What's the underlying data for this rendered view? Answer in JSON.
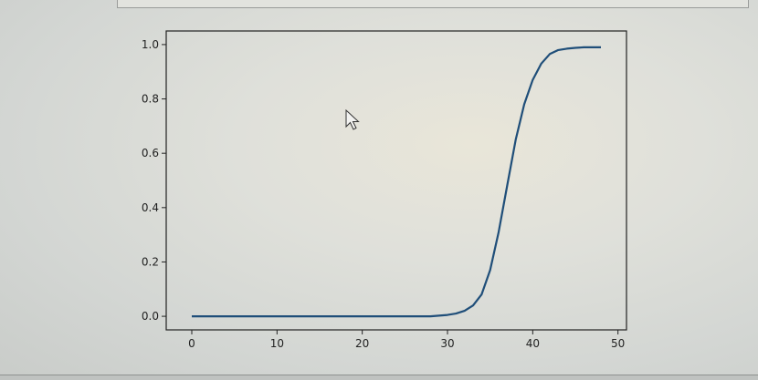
{
  "chart_data": {
    "type": "line",
    "title": "",
    "xlabel": "",
    "ylabel": "",
    "xlim": [
      -3,
      51
    ],
    "ylim": [
      -0.05,
      1.05
    ],
    "xticks": [
      0,
      10,
      20,
      30,
      40,
      50
    ],
    "yticks": [
      0.0,
      0.2,
      0.4,
      0.6,
      0.8,
      1.0
    ],
    "xtick_labels": [
      "0",
      "10",
      "20",
      "30",
      "40",
      "50"
    ],
    "ytick_labels": [
      "0.0",
      "0.2",
      "0.4",
      "0.6",
      "0.8",
      "1.0"
    ],
    "grid": false,
    "series": [
      {
        "color": "#1f4e79",
        "x": [
          0,
          5,
          10,
          15,
          20,
          25,
          28,
          30,
          31,
          32,
          33,
          34,
          35,
          36,
          37,
          38,
          39,
          40,
          41,
          42,
          43,
          44,
          45,
          46,
          47,
          48
        ],
        "y": [
          0.0,
          0.0,
          0.0,
          0.0,
          0.0,
          0.0,
          0.0,
          0.005,
          0.01,
          0.02,
          0.04,
          0.08,
          0.17,
          0.31,
          0.48,
          0.65,
          0.78,
          0.87,
          0.93,
          0.965,
          0.98,
          0.985,
          0.988,
          0.99,
          0.99,
          0.99
        ]
      }
    ]
  },
  "cursor_icon": "arrow-pointer"
}
